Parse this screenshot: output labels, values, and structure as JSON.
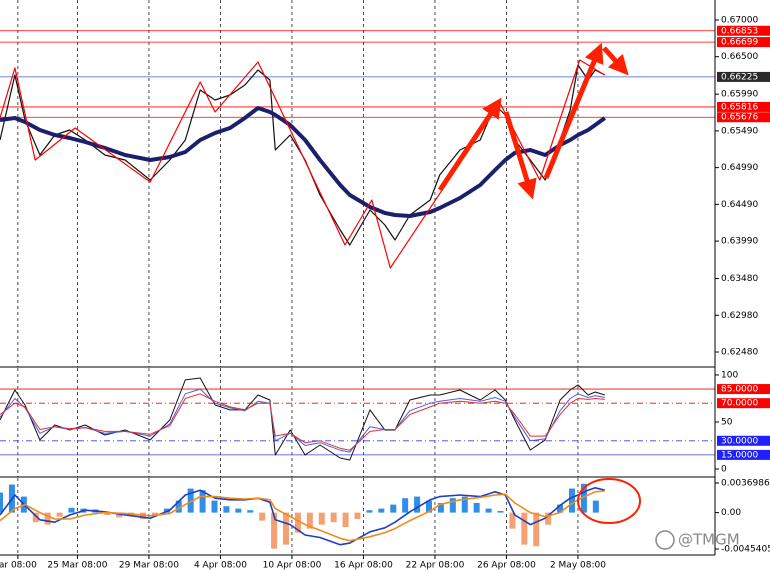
{
  "watermark": "@TMGM",
  "chart_data": [
    {
      "type": "line",
      "xlim": [
        0,
        120
      ],
      "xticks": [
        {
          "value": 3,
          "label": "ar 08:00"
        },
        {
          "value": 13,
          "label": "25 Mar 08:00"
        },
        {
          "value": 25,
          "label": "29 Mar 08:00"
        },
        {
          "value": 37,
          "label": "4 Apr 08:00"
        },
        {
          "value": 49,
          "label": "10 Apr 08:00"
        },
        {
          "value": 61,
          "label": "16 Apr 08:00"
        },
        {
          "value": 73,
          "label": "22 Apr 08:00"
        },
        {
          "value": 85,
          "label": "26 Apr 08:00"
        },
        {
          "value": 97,
          "label": "2 May 08:00"
        }
      ],
      "ylim": [
        0.62276,
        0.67272
      ],
      "yticks": [
        {
          "value": 0.67,
          "label": "0.67000"
        },
        {
          "value": 0.665,
          "label": "0.66500"
        },
        {
          "value": 0.6599,
          "label": "0.65990"
        },
        {
          "value": 0.6549,
          "label": "0.65490"
        },
        {
          "value": 0.6499,
          "label": "0.64990"
        },
        {
          "value": 0.6449,
          "label": "0.64490"
        },
        {
          "value": 0.6399,
          "label": "0.63990"
        },
        {
          "value": 0.6348,
          "label": "0.63480"
        },
        {
          "value": 0.6298,
          "label": "0.62980"
        },
        {
          "value": 0.6248,
          "label": "0.62480"
        }
      ],
      "levels": [
        {
          "value": 0.66853,
          "label": "0.66853",
          "color": "#ff0000",
          "label_background": "#ff0000"
        },
        {
          "value": 0.66699,
          "label": "0.66699",
          "color": "#ff0000",
          "label_background": "#ff0000"
        },
        {
          "value": 0.66225,
          "label": "0.66225",
          "color": "#3b5bd6",
          "label_background": "#2b2b2b"
        },
        {
          "value": 0.65816,
          "label": "0.65816",
          "color": "#ff0000",
          "label_background": "#ff0000"
        },
        {
          "value": 0.65676,
          "label": "0.65676",
          "color": "#ff0000",
          "label_background": "#ff0000"
        }
      ],
      "series": [
        {
          "color": "#111111",
          "line_width": 1.2,
          "x": [
            0,
            2.5,
            4.2,
            6.7,
            9.2,
            11.7,
            14.3,
            17.6,
            21.0,
            25.2,
            28.5,
            31.1,
            33.6,
            36.1,
            38.6,
            41.1,
            43.3,
            45.3,
            46.2,
            48.7,
            51.2,
            53.7,
            57.1,
            58.7,
            62.1,
            64.6,
            66.3,
            68.8,
            72.2,
            73.8,
            77.2,
            80.6,
            83.1,
            84.8,
            86.4,
            89.0,
            91.5,
            94.0,
            95.7,
            97.0,
            98.7,
            99.9,
            101.5
          ],
          "values": [
            0.65366,
            0.66251,
            0.65639,
            0.65162,
            0.65434,
            0.65502,
            0.65366,
            0.65162,
            0.65094,
            0.64822,
            0.65094,
            0.65366,
            0.66047,
            0.65911,
            0.65979,
            0.66115,
            0.66319,
            0.66183,
            0.6523,
            0.65434,
            0.65094,
            0.64617,
            0.64141,
            0.63937,
            0.64413,
            0.64209,
            0.64005,
            0.64345,
            0.64549,
            0.6489,
            0.6523,
            0.65366,
            0.65843,
            0.65707,
            0.65366,
            0.65094,
            0.64822,
            0.65366,
            0.65775,
            0.66387,
            0.66183,
            0.66319,
            0.66251
          ]
        },
        {
          "color": "#1c1f6b",
          "line_width": 4,
          "x": [
            0,
            2.5,
            4.2,
            6.7,
            9.2,
            11.7,
            14.3,
            17.6,
            21.0,
            25.2,
            28.5,
            31.1,
            33.6,
            36.1,
            38.6,
            41.1,
            43.3,
            45.3,
            46.2,
            48.7,
            51.2,
            53.7,
            57.1,
            58.7,
            62.1,
            64.6,
            66.3,
            68.8,
            72.2,
            73.8,
            77.2,
            80.6,
            83.1,
            84.8,
            86.4,
            89.0,
            91.5,
            94.0,
            95.7,
            97.0,
            98.7,
            99.9,
            101.5
          ],
          "values": [
            0.65639,
            0.65666,
            0.65611,
            0.65502,
            0.65434,
            0.65393,
            0.65339,
            0.65257,
            0.65162,
            0.65094,
            0.65135,
            0.65203,
            0.65366,
            0.65462,
            0.6553,
            0.65666,
            0.65802,
            0.65748,
            0.65707,
            0.6557,
            0.65366,
            0.65094,
            0.64754,
            0.64617,
            0.64454,
            0.64372,
            0.64345,
            0.64331,
            0.64386,
            0.6444,
            0.64576,
            0.64754,
            0.64958,
            0.65094,
            0.6519,
            0.6523,
            0.65162,
            0.65298,
            0.65366,
            0.65434,
            0.65502,
            0.6557,
            0.65666
          ]
        },
        {
          "color": "#ff0000",
          "line_width": 1.2,
          "x": [
            0,
            2.5,
            5.9,
            12.6,
            25.2,
            33.6,
            36.1,
            43.3,
            57.9,
            62.4,
            65.5,
            83.9,
            90.6,
            97.3,
            101.5
          ],
          "values": [
            0.65666,
            0.66346,
            0.65094,
            0.6553,
            0.64794,
            0.66156,
            0.65748,
            0.66428,
            0.63937,
            0.64549,
            0.63624,
            0.6587,
            0.64822,
            0.66455,
            0.66251
          ]
        }
      ]
    },
    {
      "type": "line",
      "xlim": [
        0,
        120
      ],
      "ylim": [
        -8.5,
        107.4
      ],
      "yticks": [
        100,
        50,
        0
      ],
      "levels": [
        {
          "value": 85,
          "label": "85.0000",
          "color": "#ff0000",
          "label_background": "#ff0000",
          "dash": "solid"
        },
        {
          "value": 70,
          "label": "70.0000",
          "color": "#ff0000",
          "label_background": "#ff0000",
          "dash": "dashdot"
        },
        {
          "value": 30,
          "label": "30.0000",
          "color": "#3b3bff",
          "label_background": "#2020ff",
          "dash": "dashdot"
        },
        {
          "value": 15,
          "label": "15.0000",
          "color": "#3b3bff",
          "label_background": "#2020ff",
          "dash": "solid"
        }
      ],
      "series": [
        {
          "color": "#111111",
          "line_width": 1,
          "x": [
            0,
            2.5,
            4.2,
            6.7,
            9.2,
            11.7,
            14.3,
            17.6,
            21.0,
            25.2,
            28.5,
            31.1,
            33.6,
            36.1,
            38.6,
            41.1,
            43.3,
            45.3,
            46.2,
            48.7,
            51.2,
            53.7,
            57.1,
            58.7,
            62.1,
            64.6,
            66.3,
            68.8,
            72.2,
            73.8,
            77.2,
            80.6,
            83.1,
            84.8,
            86.4,
            89.0,
            91.5,
            94.0,
            95.7,
            97.0,
            98.7,
            99.9,
            101.5
          ],
          "values": [
            52.1,
            84,
            68.1,
            30.9,
            46.8,
            41.5,
            46.8,
            36.2,
            41.5,
            30.9,
            52.1,
            94.7,
            96.8,
            68.1,
            62.8,
            62.8,
            78.7,
            73.4,
            14.9,
            41.5,
            14.9,
            25.5,
            11.7,
            9.6,
            62.8,
            41.5,
            41.5,
            73.4,
            78.7,
            78.7,
            84,
            73.4,
            84,
            73.4,
            52.1,
            20.2,
            30.9,
            73.4,
            84,
            89.4,
            78.7,
            81.9,
            78.7
          ]
        },
        {
          "color": "#4a5ee8",
          "line_width": 1,
          "x": [
            0,
            2.5,
            4.2,
            6.7,
            9.2,
            11.7,
            14.3,
            17.6,
            21.0,
            25.2,
            28.5,
            31.1,
            33.6,
            36.1,
            38.6,
            41.1,
            43.3,
            45.3,
            46.2,
            48.7,
            51.2,
            53.7,
            57.1,
            58.7,
            62.1,
            64.6,
            66.3,
            68.8,
            72.2,
            73.8,
            77.2,
            80.6,
            83.1,
            84.8,
            86.4,
            89.0,
            91.5,
            94.0,
            95.7,
            97.0,
            98.7,
            99.9,
            101.5
          ],
          "values": [
            55,
            75,
            65,
            38,
            45,
            42,
            44,
            38,
            40,
            35,
            48,
            80,
            85,
            70,
            65,
            62,
            72,
            70,
            30,
            38,
            25,
            28,
            20,
            18,
            45,
            42,
            42,
            62,
            70,
            72,
            75,
            72,
            76,
            72,
            55,
            30,
            32,
            62,
            75,
            80,
            76,
            78,
            76
          ]
        },
        {
          "color": "#e03030",
          "line_width": 1,
          "x": [
            0,
            2.5,
            4.2,
            6.7,
            9.2,
            11.7,
            14.3,
            17.6,
            21.0,
            25.2,
            28.5,
            31.1,
            33.6,
            36.1,
            38.6,
            41.1,
            43.3,
            45.3,
            46.2,
            48.7,
            51.2,
            53.7,
            57.1,
            58.7,
            62.1,
            64.6,
            66.3,
            68.8,
            72.2,
            73.8,
            77.2,
            80.6,
            83.1,
            84.8,
            86.4,
            89.0,
            91.5,
            94.0,
            95.7,
            97.0,
            98.7,
            99.9,
            101.5
          ],
          "values": [
            58,
            70,
            66,
            42,
            45,
            43,
            44,
            40,
            40,
            37,
            46,
            75,
            80,
            72,
            66,
            63,
            70,
            70,
            35,
            38,
            28,
            30,
            22,
            20,
            40,
            42,
            42,
            58,
            66,
            70,
            72,
            70,
            72,
            70,
            58,
            35,
            35,
            58,
            70,
            75,
            74,
            75,
            74
          ]
        }
      ]
    },
    {
      "type": "bar",
      "xlim": [
        0,
        120
      ],
      "ylim": [
        -0.00529,
        0.00432
      ],
      "yticks": [
        0.0036986,
        {
          "value": 0,
          "label": "0.00"
        },
        -0.0045405
      ],
      "histogram": {
        "color": "#2f8ee8",
        "negative_color": "#f4a070",
        "x": [
          0,
          2,
          4,
          6,
          8,
          10,
          12,
          14,
          16,
          18,
          20,
          22,
          24,
          26,
          28,
          30,
          32,
          34,
          36,
          38,
          40,
          42,
          44,
          46,
          48,
          50,
          52,
          54,
          56,
          58,
          60,
          62,
          64,
          66,
          68,
          70,
          72,
          74,
          76,
          78,
          80,
          82,
          84,
          86,
          88,
          90,
          92,
          94,
          96,
          98,
          100
        ],
        "values": [
          0.0025,
          0.0035,
          0.002,
          -0.0012,
          -0.0015,
          -0.0005,
          0.0006,
          0.0005,
          0.0004,
          -0.0003,
          -0.0006,
          -0.0004,
          -0.0008,
          -0.0003,
          0.0005,
          0.0015,
          0.003,
          0.0028,
          0.0015,
          0.0008,
          0.0005,
          0.0003,
          -0.001,
          -0.0045,
          -0.004,
          -0.0025,
          -0.002,
          -0.0015,
          -0.0012,
          -0.0018,
          -0.0008,
          0.0003,
          0.0005,
          0.001,
          0.0018,
          0.002,
          0.0015,
          0.0012,
          0.0018,
          0.002,
          0.0012,
          0.0005,
          0.0002,
          -0.002,
          -0.004,
          -0.0042,
          -0.0015,
          0.001,
          0.003,
          0.0036,
          0.0015
        ]
      },
      "series": [
        {
          "color": "#1f3fbf",
          "line_width": 1.6,
          "x": [
            0,
            2.5,
            4.2,
            6.7,
            9.2,
            11.7,
            14.3,
            17.6,
            21.0,
            25.2,
            28.5,
            31.1,
            33.6,
            36.1,
            38.6,
            41.1,
            43.3,
            45.3,
            46.2,
            48.7,
            51.2,
            53.7,
            57.1,
            58.7,
            62.1,
            64.6,
            66.3,
            68.8,
            72.2,
            73.8,
            77.2,
            80.6,
            83.1,
            84.8,
            86.4,
            89.0,
            91.5,
            94.0,
            95.7,
            97.0,
            98.7,
            99.9,
            101.5
          ],
          "values": [
            -0.0003,
            0.0022,
            0.0009,
            -0.0009,
            -0.0012,
            -0.0003,
            0.0003,
            0.0001,
            -0.0003,
            -0.0007,
            0.0003,
            0.0022,
            0.0028,
            0.0018,
            0.0016,
            0.0016,
            0.0018,
            0.0013,
            -0.0009,
            -0.0015,
            -0.0028,
            -0.0031,
            -0.004,
            -0.0038,
            -0.0024,
            -0.0019,
            -0.0012,
            0.0001,
            0.0016,
            0.002,
            0.0022,
            0.002,
            0.0026,
            0.0022,
            -0.0003,
            -0.0015,
            -0.0007,
            0.0009,
            0.0018,
            0.0022,
            0.0028,
            0.0031,
            0.0028
          ]
        },
        {
          "color": "#f08a1c",
          "line_width": 1.6,
          "x": [
            0,
            2.5,
            4.2,
            6.7,
            9.2,
            11.7,
            14.3,
            17.6,
            21.0,
            25.2,
            28.5,
            31.1,
            33.6,
            36.1,
            38.6,
            41.1,
            43.3,
            45.3,
            46.2,
            48.7,
            51.2,
            53.7,
            57.1,
            58.7,
            62.1,
            64.6,
            66.3,
            68.8,
            72.2,
            73.8,
            77.2,
            80.6,
            83.1,
            84.8,
            86.4,
            89.0,
            91.5,
            94.0,
            95.7,
            97.0,
            98.7,
            99.9,
            101.5
          ],
          "values": [
            -0.001,
            0.0005,
            0.001,
            0,
            -0.0008,
            -0.0008,
            -0.0003,
            0,
            -0.0001,
            -0.0004,
            -0.0001,
            0.001,
            0.002,
            0.002,
            0.0018,
            0.0017,
            0.0018,
            0.0016,
            0.0005,
            -0.0005,
            -0.0015,
            -0.0022,
            -0.0032,
            -0.0035,
            -0.003,
            -0.0025,
            -0.002,
            -0.001,
            0.0002,
            0.001,
            0.0016,
            0.0019,
            0.0022,
            0.0023,
            0.0012,
            0,
            -0.0005,
            0,
            0.001,
            0.0016,
            0.0022,
            0.0026,
            0.0027
          ]
        }
      ]
    }
  ]
}
